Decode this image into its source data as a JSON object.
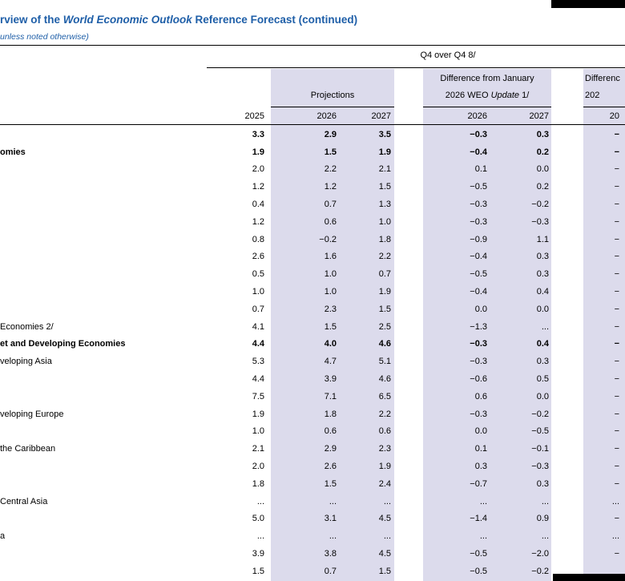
{
  "colors": {
    "accent_blue": "#1f5fa8",
    "band": "#dcdbec",
    "rule": "#000000"
  },
  "title": {
    "part1": "rview of the ",
    "italic": "World Economic Outlook",
    "part2": " Reference Forecast (continued)",
    "subtitle": "unless noted otherwise)"
  },
  "header": {
    "q4_group": "Q4 over Q4 8/",
    "projections": "Projections",
    "diff_jan_line1": "Difference from January",
    "diff_jan_line2_pre": "2026 WEO ",
    "diff_jan_line2_italic": "Update",
    "diff_jan_line2_post": " 1/",
    "diff_right_line1": "Differenc",
    "diff_right_line2": "202",
    "years": [
      "2025",
      "2026",
      "2027",
      "2026",
      "2027",
      "20"
    ]
  },
  "table": {
    "rows": [
      {
        "label": "",
        "bold": true,
        "v": [
          "3.3",
          "2.9",
          "3.5",
          "−0.3",
          "0.3",
          "−"
        ]
      },
      {
        "label": "omies",
        "bold": true,
        "v": [
          "1.9",
          "1.5",
          "1.9",
          "−0.4",
          "0.2",
          "−"
        ]
      },
      {
        "label": "",
        "bold": false,
        "v": [
          "2.0",
          "2.2",
          "2.1",
          "0.1",
          "0.0",
          "−"
        ]
      },
      {
        "label": "",
        "bold": false,
        "v": [
          "1.2",
          "1.2",
          "1.5",
          "−0.5",
          "0.2",
          "−"
        ]
      },
      {
        "label": "",
        "bold": false,
        "v": [
          "0.4",
          "0.7",
          "1.3",
          "−0.3",
          "−0.2",
          "−"
        ]
      },
      {
        "label": "",
        "bold": false,
        "v": [
          "1.2",
          "0.6",
          "1.0",
          "−0.3",
          "−0.3",
          "−"
        ]
      },
      {
        "label": "",
        "bold": false,
        "v": [
          "0.8",
          "−0.2",
          "1.8",
          "−0.9",
          "1.1",
          "−"
        ]
      },
      {
        "label": "",
        "bold": false,
        "v": [
          "2.6",
          "1.6",
          "2.2",
          "−0.4",
          "0.3",
          "−"
        ]
      },
      {
        "label": "",
        "bold": false,
        "v": [
          "0.5",
          "1.0",
          "0.7",
          "−0.5",
          "0.3",
          "−"
        ]
      },
      {
        "label": "",
        "bold": false,
        "v": [
          "1.0",
          "1.0",
          "1.9",
          "−0.4",
          "0.4",
          "−"
        ]
      },
      {
        "label": "",
        "bold": false,
        "v": [
          "0.7",
          "2.3",
          "1.5",
          "0.0",
          "0.0",
          "−"
        ]
      },
      {
        "label": "Economies 2/",
        "bold": false,
        "v": [
          "4.1",
          "1.5",
          "2.5",
          "−1.3",
          "...",
          "−"
        ]
      },
      {
        "label": "et and Developing Economies",
        "bold": true,
        "v": [
          "4.4",
          "4.0",
          "4.6",
          "−0.3",
          "0.4",
          "−"
        ]
      },
      {
        "label": "veloping Asia",
        "bold": false,
        "v": [
          "5.3",
          "4.7",
          "5.1",
          "−0.3",
          "0.3",
          "−"
        ]
      },
      {
        "label": "",
        "bold": false,
        "v": [
          "4.4",
          "3.9",
          "4.6",
          "−0.6",
          "0.5",
          "−"
        ]
      },
      {
        "label": "",
        "bold": false,
        "v": [
          "7.5",
          "7.1",
          "6.5",
          "0.6",
          "0.0",
          "−"
        ]
      },
      {
        "label": "veloping Europe",
        "bold": false,
        "v": [
          "1.9",
          "1.8",
          "2.2",
          "−0.3",
          "−0.2",
          "−"
        ]
      },
      {
        "label": "",
        "bold": false,
        "v": [
          "1.0",
          "0.6",
          "0.6",
          "0.0",
          "−0.5",
          "−"
        ]
      },
      {
        "label": "the Caribbean",
        "bold": false,
        "v": [
          "2.1",
          "2.9",
          "2.3",
          "0.1",
          "−0.1",
          "−"
        ]
      },
      {
        "label": "",
        "bold": false,
        "v": [
          "2.0",
          "2.6",
          "1.9",
          "0.3",
          "−0.3",
          "−"
        ]
      },
      {
        "label": "",
        "bold": false,
        "v": [
          "1.8",
          "1.5",
          "2.4",
          "−0.7",
          "0.3",
          "−"
        ]
      },
      {
        "label": "Central Asia",
        "bold": false,
        "v": [
          "...",
          "...",
          "...",
          "...",
          "...",
          "..."
        ]
      },
      {
        "label": "",
        "bold": false,
        "v": [
          "5.0",
          "3.1",
          "4.5",
          "−1.4",
          "0.9",
          "−"
        ]
      },
      {
        "label": "a",
        "bold": false,
        "v": [
          "...",
          "...",
          "...",
          "...",
          "...",
          "..."
        ]
      },
      {
        "label": "",
        "bold": false,
        "v": [
          "3.9",
          "3.8",
          "4.5",
          "−0.5",
          "−2.0",
          "−"
        ]
      },
      {
        "label": "",
        "bold": false,
        "v": [
          "1.5",
          "0.7",
          "1.5",
          "−0.5",
          "−0.2",
          ""
        ]
      }
    ]
  }
}
